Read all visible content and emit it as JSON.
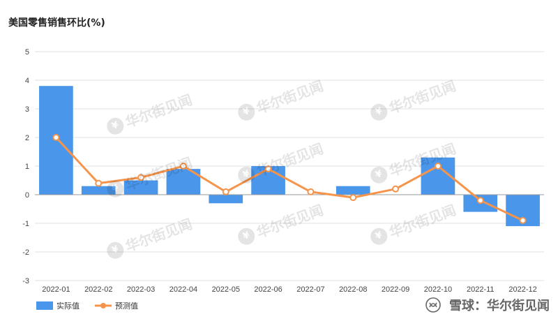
{
  "chart_data": {
    "type": "bar",
    "title": "美国零售销售环比(%)",
    "categories": [
      "2022-01",
      "2022-02",
      "2022-03",
      "2022-04",
      "2022-05",
      "2022-06",
      "2022-07",
      "2022-08",
      "2022-09",
      "2022-10",
      "2022-11",
      "2022-12"
    ],
    "series": [
      {
        "name": "实际值",
        "type": "bar",
        "color": "#4a96ea",
        "values": [
          3.8,
          0.3,
          0.5,
          0.9,
          -0.3,
          1.0,
          0.0,
          0.3,
          0.0,
          1.3,
          -0.6,
          -1.1
        ]
      },
      {
        "name": "预测值",
        "type": "line",
        "color": "#f5944a",
        "values": [
          2.0,
          0.4,
          0.6,
          1.0,
          0.1,
          0.9,
          0.1,
          -0.1,
          0.2,
          1.0,
          -0.2,
          -0.9
        ]
      }
    ],
    "ylim": [
      -3,
      5
    ],
    "yticks": [
      5,
      4,
      3,
      2,
      1,
      0,
      -1,
      -2,
      -3
    ],
    "grid": true,
    "legend_position": "bottom-left"
  },
  "watermark": {
    "text": "华尔街见闻",
    "seal_glyph": "¥"
  },
  "footer": {
    "brand": "雪球：华尔街见闻"
  }
}
